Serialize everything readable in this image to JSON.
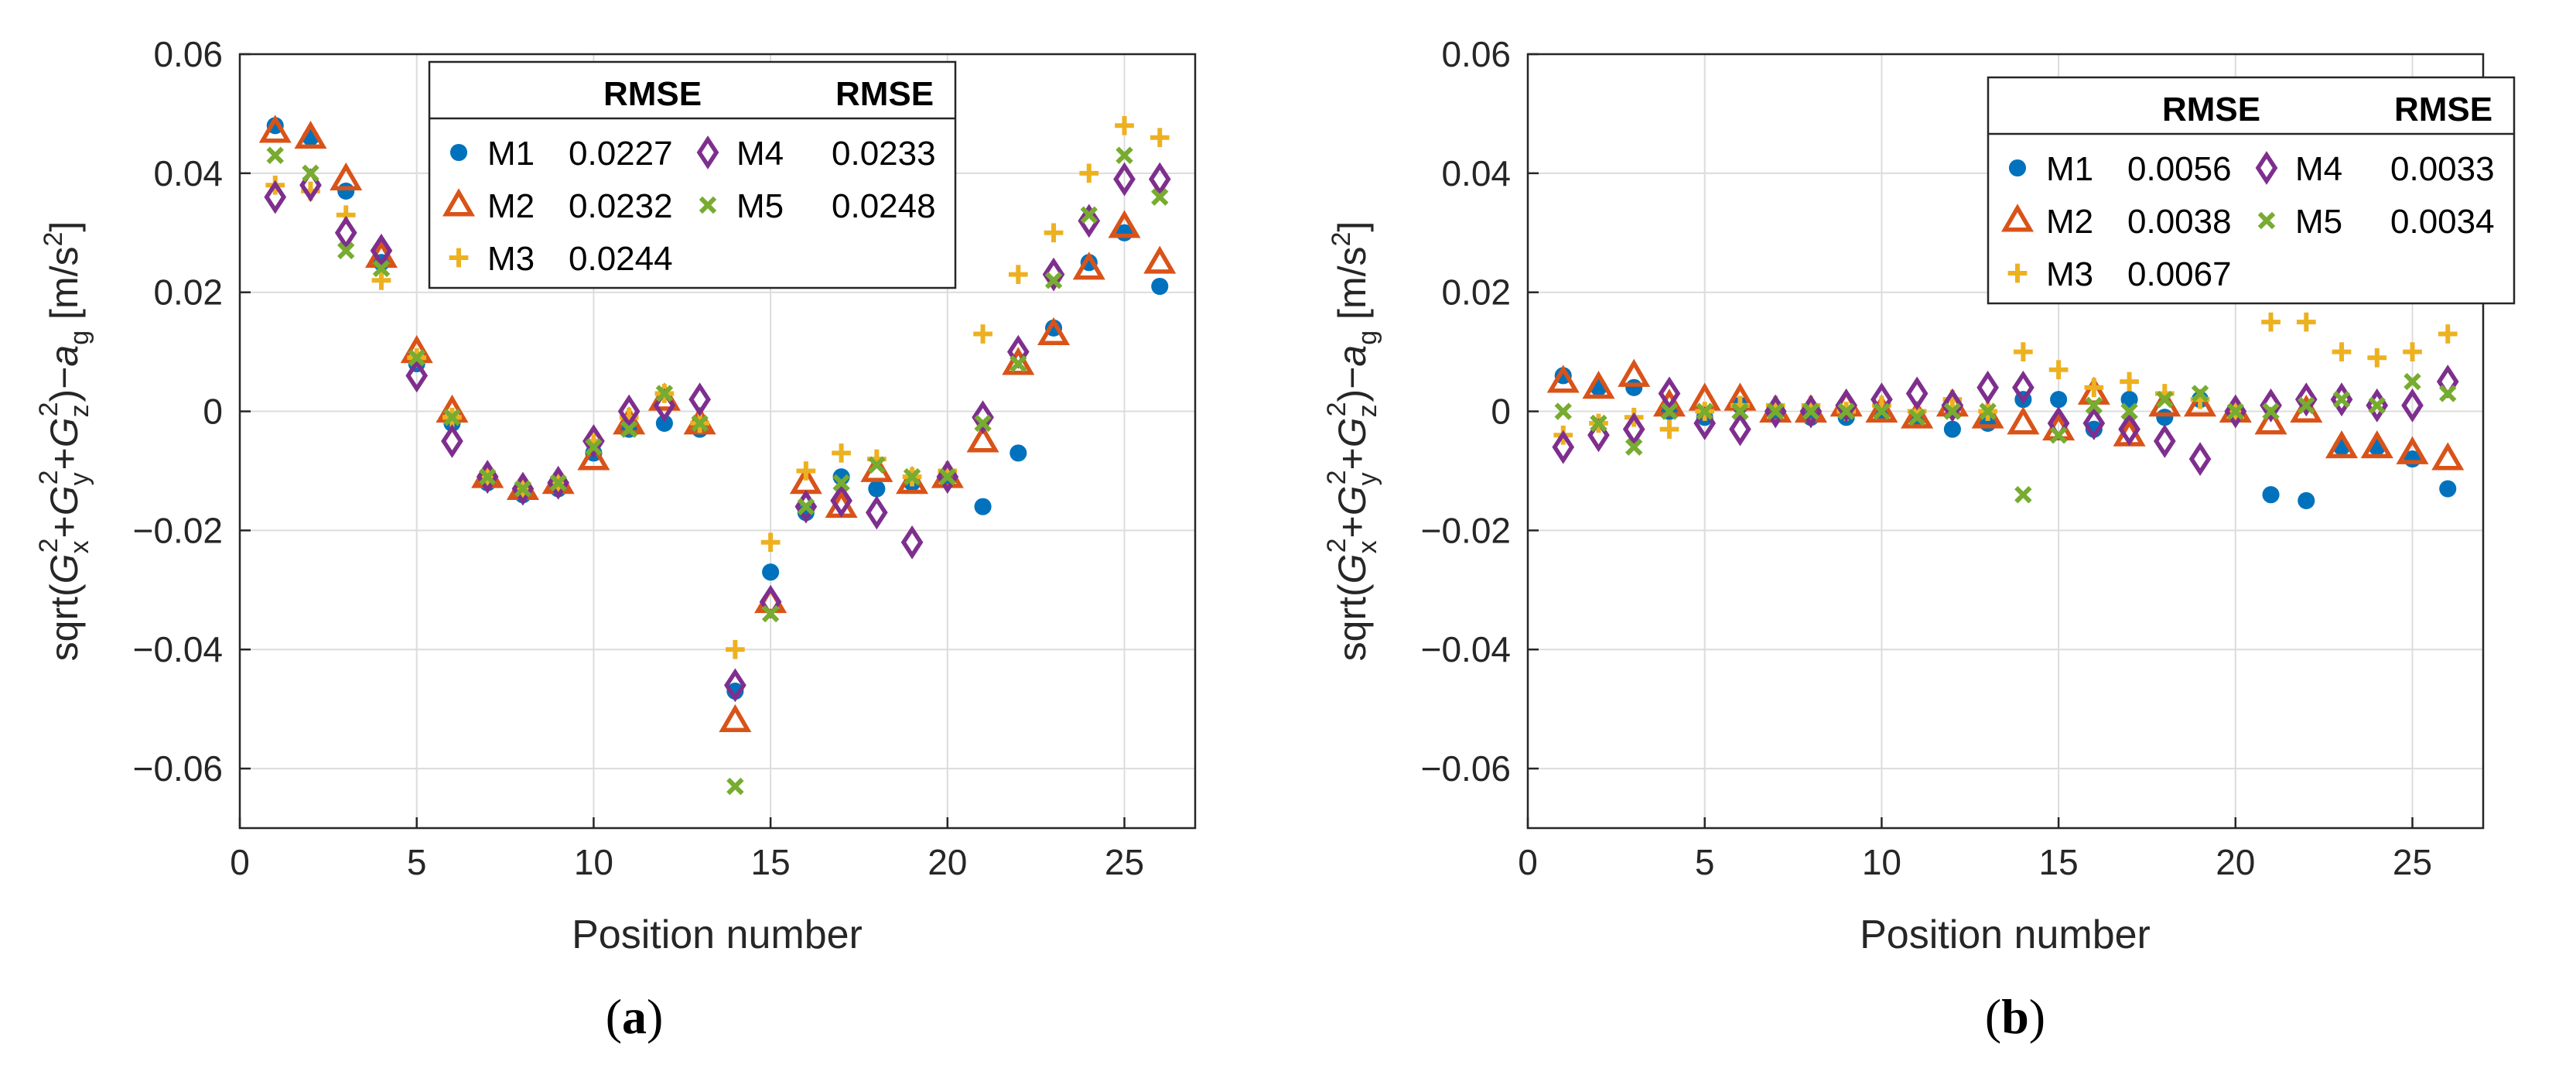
{
  "chart_data": [
    {
      "type": "scatter",
      "caption_letter": "a",
      "xlabel": "Position number",
      "ylabel": {
        "prefix": "sqrt(",
        "sym_g": "G",
        "sub_x": "x",
        "sub_y": "y",
        "sub_z": "z",
        "sup": "2",
        "plus": "+",
        "close_minus": ")−",
        "sym_a": "a",
        "sub_g": "g",
        "unit": " [m/s",
        "unit_sup": "2",
        "unit_close": "]"
      },
      "xlim": [
        0,
        27
      ],
      "ylim": [
        -0.07,
        0.06
      ],
      "xticks": [
        0,
        5,
        10,
        15,
        20,
        25
      ],
      "xtick_labels": [
        "0",
        "5",
        "10",
        "15",
        "20",
        "25"
      ],
      "yticks": [
        -0.06,
        -0.04,
        -0.02,
        0,
        0.02,
        0.04,
        0.06
      ],
      "ytick_labels": [
        "−0.06",
        "−0.04",
        "−0.02",
        "0",
        "0.02",
        "0.04",
        "0.06"
      ],
      "grid": true,
      "legend_position": "top",
      "legend_header": "RMSE",
      "x": [
        1,
        2,
        3,
        4,
        5,
        6,
        7,
        8,
        9,
        10,
        11,
        12,
        13,
        14,
        15,
        16,
        17,
        18,
        19,
        20,
        21,
        22,
        23,
        24,
        25,
        26
      ],
      "series": [
        {
          "name": "M1",
          "rmse": "0.0227",
          "marker": "circle",
          "values": [
            0.048,
            0.046,
            0.037,
            0.025,
            0.008,
            -0.002,
            -0.012,
            -0.014,
            -0.013,
            -0.007,
            -0.003,
            -0.002,
            -0.003,
            -0.047,
            -0.027,
            -0.017,
            -0.011,
            -0.013,
            -0.012,
            -0.011,
            -0.016,
            -0.007,
            0.014,
            0.025,
            0.03,
            0.021
          ]
        },
        {
          "name": "M2",
          "rmse": "0.0232",
          "marker": "triangle",
          "values": [
            0.047,
            0.046,
            0.039,
            0.026,
            0.01,
            0.0,
            -0.011,
            -0.013,
            -0.012,
            -0.008,
            -0.002,
            0.002,
            -0.002,
            -0.052,
            -0.032,
            -0.012,
            -0.016,
            -0.01,
            -0.012,
            -0.011,
            -0.005,
            0.008,
            0.013,
            0.024,
            0.031,
            0.025
          ]
        },
        {
          "name": "M3",
          "rmse": "0.0244",
          "marker": "plus",
          "values": [
            0.038,
            0.037,
            0.033,
            0.022,
            0.009,
            -0.001,
            -0.011,
            -0.013,
            -0.012,
            -0.005,
            -0.001,
            0.003,
            -0.002,
            -0.04,
            -0.022,
            -0.01,
            -0.007,
            -0.008,
            -0.011,
            -0.01,
            0.013,
            0.023,
            0.03,
            0.04,
            0.048,
            0.046
          ]
        },
        {
          "name": "M4",
          "rmse": "0.0233",
          "marker": "diamond",
          "values": [
            0.036,
            0.038,
            0.03,
            0.027,
            0.006,
            -0.005,
            -0.011,
            -0.013,
            -0.012,
            -0.005,
            0.0,
            0.001,
            0.002,
            -0.046,
            -0.032,
            -0.016,
            -0.015,
            -0.017,
            -0.022,
            -0.011,
            -0.001,
            0.01,
            0.023,
            0.032,
            0.039,
            0.039
          ]
        },
        {
          "name": "M5",
          "rmse": "0.0248",
          "marker": "x",
          "values": [
            0.043,
            0.04,
            0.027,
            0.024,
            0.009,
            -0.001,
            -0.011,
            -0.013,
            -0.012,
            -0.006,
            -0.003,
            0.003,
            -0.002,
            -0.063,
            -0.034,
            -0.016,
            -0.012,
            -0.009,
            -0.011,
            -0.011,
            -0.002,
            0.008,
            0.022,
            0.033,
            0.043,
            0.036
          ]
        }
      ]
    },
    {
      "type": "scatter",
      "caption_letter": "b",
      "xlabel": "Position number",
      "ylabel": {
        "prefix": "sqrt(",
        "sym_g": "G",
        "sub_x": "x",
        "sub_y": "y",
        "sub_z": "z",
        "sup": "2",
        "plus": "+",
        "close_minus": ")−",
        "sym_a": "a",
        "sub_g": "g",
        "unit": " [m/s",
        "unit_sup": "2",
        "unit_close": "]"
      },
      "xlim": [
        0,
        27
      ],
      "ylim": [
        -0.07,
        0.06
      ],
      "xticks": [
        0,
        5,
        10,
        15,
        20,
        25
      ],
      "xtick_labels": [
        "0",
        "5",
        "10",
        "15",
        "20",
        "25"
      ],
      "yticks": [
        -0.06,
        -0.04,
        -0.02,
        0,
        0.02,
        0.04,
        0.06
      ],
      "ytick_labels": [
        "−0.06",
        "−0.04",
        "−0.02",
        "0",
        "0.02",
        "0.04",
        "0.06"
      ],
      "grid": true,
      "legend_position": "top-right",
      "legend_header": "RMSE",
      "x": [
        1,
        2,
        3,
        4,
        5,
        6,
        7,
        8,
        9,
        10,
        11,
        12,
        13,
        14,
        15,
        16,
        17,
        18,
        19,
        20,
        21,
        22,
        23,
        24,
        25,
        26
      ],
      "series": [
        {
          "name": "M1",
          "rmse": "0.0056",
          "marker": "circle",
          "values": [
            0.006,
            0.004,
            0.004,
            0.0,
            -0.001,
            0.001,
            0.0,
            -0.001,
            -0.001,
            0.0,
            -0.001,
            -0.003,
            -0.002,
            0.002,
            0.002,
            -0.003,
            0.002,
            -0.001,
            0.002,
            0.0,
            -0.014,
            -0.015,
            -0.006,
            -0.006,
            -0.008,
            -0.013
          ]
        },
        {
          "name": "M2",
          "rmse": "0.0038",
          "marker": "triangle",
          "values": [
            0.005,
            0.004,
            0.006,
            0.001,
            0.002,
            0.002,
            0.0,
            0.0,
            0.001,
            0.0,
            -0.001,
            0.001,
            -0.001,
            -0.002,
            -0.003,
            0.003,
            -0.004,
            0.001,
            0.001,
            0.0,
            -0.002,
            0.0,
            -0.006,
            -0.006,
            -0.007,
            -0.008
          ]
        },
        {
          "name": "M3",
          "rmse": "0.0067",
          "marker": "plus",
          "values": [
            -0.004,
            -0.002,
            -0.001,
            -0.003,
            0.0,
            0.001,
            0.001,
            0.001,
            0.0,
            0.001,
            0.0,
            0.002,
            0.0,
            0.01,
            0.007,
            0.004,
            0.005,
            0.003,
            0.002,
            0.0,
            0.015,
            0.015,
            0.01,
            0.009,
            0.01,
            0.013
          ]
        },
        {
          "name": "M4",
          "rmse": "0.0033",
          "marker": "diamond",
          "values": [
            -0.006,
            -0.004,
            -0.003,
            0.003,
            -0.002,
            -0.003,
            0.0,
            0.0,
            0.001,
            0.002,
            0.003,
            0.001,
            0.004,
            0.004,
            -0.002,
            -0.002,
            -0.003,
            -0.005,
            -0.008,
            0.0,
            0.001,
            0.002,
            0.002,
            0.001,
            0.001,
            0.005
          ]
        },
        {
          "name": "M5",
          "rmse": "0.0034",
          "marker": "x",
          "values": [
            0.0,
            -0.002,
            -0.006,
            0.0,
            0.0,
            0.0,
            0.0,
            0.0,
            0.0,
            0.0,
            -0.001,
            0.0,
            0.0,
            -0.014,
            -0.004,
            0.001,
            0.0,
            0.002,
            0.003,
            0.0,
            0.0,
            0.001,
            0.002,
            0.001,
            0.005,
            0.003
          ]
        }
      ]
    }
  ],
  "colors": {
    "M1": "#0072BD",
    "M2": "#D95319",
    "M3": "#EDB120",
    "M4": "#7E2F8E",
    "M5": "#77AC30",
    "axis": "#262626",
    "grid": "#dcdcdc"
  }
}
